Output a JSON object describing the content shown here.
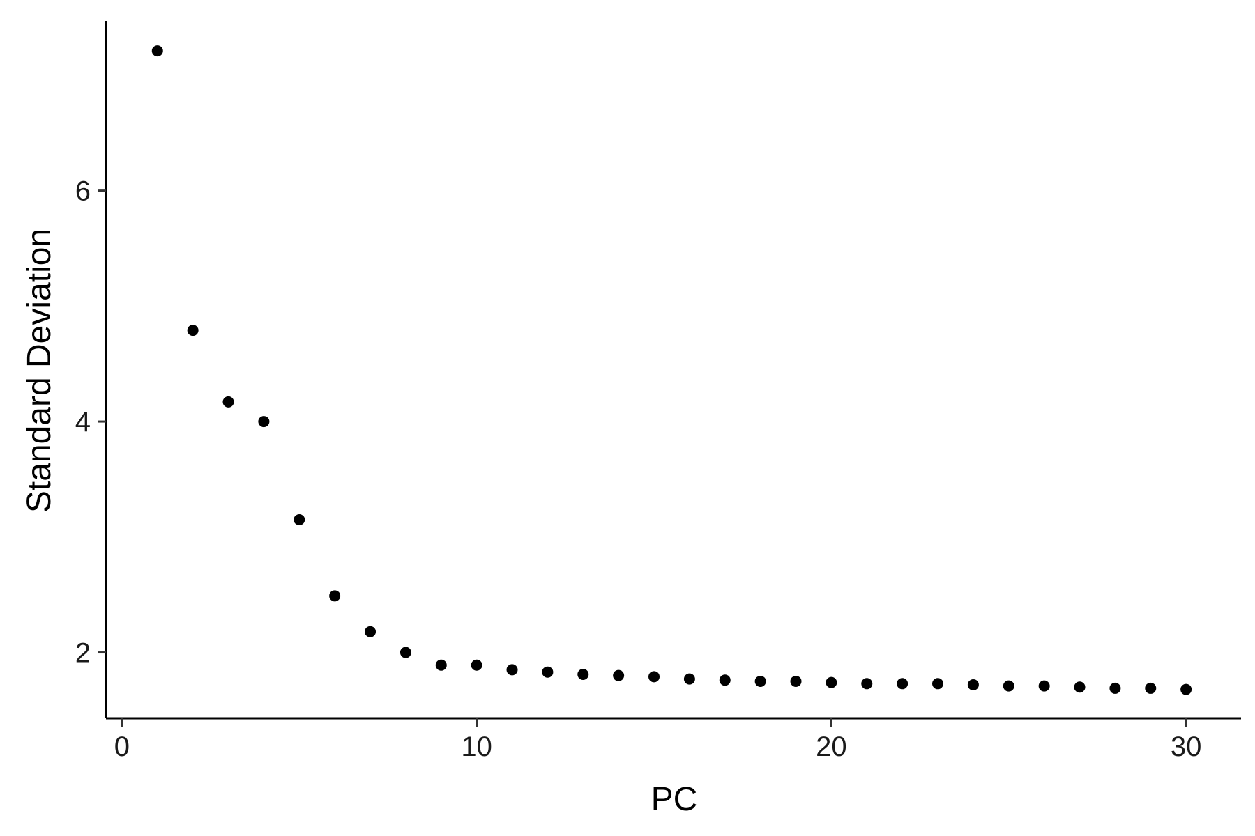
{
  "chart_data": {
    "type": "scatter",
    "title": "",
    "xlabel": "PC",
    "ylabel": "Standard Deviation",
    "xlim": [
      -0.45,
      31.55
    ],
    "ylim": [
      1.43,
      7.47
    ],
    "x_ticks": [
      0,
      10,
      20,
      30
    ],
    "y_ticks": [
      2,
      4,
      6
    ],
    "grid": false,
    "legend": "none",
    "point_color": "#000000",
    "series": [
      {
        "x": [
          1,
          2,
          3,
          4,
          5,
          6,
          7,
          8,
          9,
          10,
          11,
          12,
          13,
          14,
          15,
          16,
          17,
          18,
          19,
          20,
          21,
          22,
          23,
          24,
          25,
          26,
          27,
          28,
          29,
          30
        ],
        "values": [
          7.21,
          4.79,
          4.17,
          4.0,
          3.15,
          2.49,
          2.18,
          2.0,
          1.89,
          1.89,
          1.85,
          1.83,
          1.81,
          1.8,
          1.79,
          1.77,
          1.76,
          1.75,
          1.75,
          1.74,
          1.73,
          1.73,
          1.73,
          1.72,
          1.71,
          1.71,
          1.7,
          1.69,
          1.69,
          1.68
        ]
      }
    ]
  }
}
